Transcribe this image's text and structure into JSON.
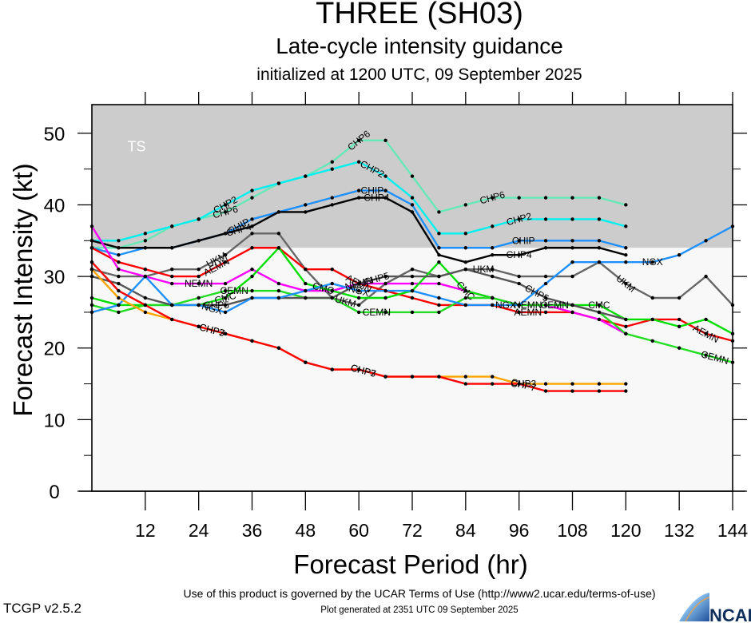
{
  "header": {
    "title": "THREE (SH03)",
    "subtitle": "Late-cycle intensity guidance",
    "init_line": "initialized at 1200 UTC, 09 September 2025"
  },
  "footer": {
    "terms": "Use of this product is governed by the UCAR Terms of Use (http://www2.ucar.edu/terms-of-use)",
    "generated": "Plot generated at 2351 UTC   09 September 2025",
    "version": "TCGP v2.5.2",
    "logo_text": "NCAR"
  },
  "chart_data": {
    "type": "line",
    "title": "THREE (SH03)",
    "subtitle": "Late-cycle intensity guidance",
    "xlabel": "Forecast Period (hr)",
    "ylabel": "Forecast Intensity (kt)",
    "xlim": [
      0,
      144
    ],
    "ylim": [
      0,
      54
    ],
    "xticks": [
      12,
      24,
      36,
      48,
      60,
      72,
      84,
      96,
      108,
      120,
      132,
      144
    ],
    "yticks": [
      0,
      10,
      20,
      30,
      40,
      50
    ],
    "grid": false,
    "legend": "none (inline series labels)",
    "bands": [
      {
        "label": "TS",
        "from": 34,
        "to": 54,
        "color": "#cccccc"
      },
      {
        "label": "",
        "from": 0,
        "to": 34,
        "color": "#f8f8f8"
      }
    ],
    "series": [
      {
        "name": "CHP6",
        "color": "#66e8b8",
        "x": [
          0,
          6,
          12,
          18,
          24,
          30,
          36,
          42,
          48,
          54,
          60,
          66,
          72,
          78,
          84,
          90,
          96,
          102,
          108,
          114,
          120
        ],
        "y": [
          34,
          34,
          35,
          37,
          38,
          39,
          41,
          43,
          44,
          46,
          49,
          49,
          44,
          39,
          40,
          41,
          41,
          41,
          41,
          41,
          40
        ],
        "label_at": [
          30,
          60,
          90
        ]
      },
      {
        "name": "CHP2",
        "color": "#00f0f0",
        "x": [
          0,
          6,
          12,
          18,
          24,
          30,
          36,
          42,
          48,
          54,
          60,
          66,
          72,
          78,
          84,
          90,
          96,
          102,
          108,
          114,
          120
        ],
        "y": [
          35,
          35,
          36,
          37,
          38,
          40,
          42,
          43,
          44,
          45,
          46,
          44,
          41,
          36,
          36,
          37,
          38,
          38,
          38,
          38,
          37
        ],
        "label_at": [
          30,
          63,
          96
        ]
      },
      {
        "name": "CHIP",
        "color": "#1e90ff",
        "x": [
          0,
          6,
          12,
          18,
          24,
          30,
          36,
          42,
          48,
          54,
          60,
          66,
          72,
          78,
          84,
          90,
          96,
          102,
          108,
          114,
          120
        ],
        "y": [
          34,
          33,
          34,
          34,
          35,
          36,
          38,
          39,
          40,
          41,
          42,
          42,
          40,
          34,
          34,
          34,
          35,
          35,
          35,
          35,
          34
        ],
        "label_at": [
          33,
          63,
          97
        ]
      },
      {
        "name": "CHP4",
        "color": "#000000",
        "x": [
          0,
          6,
          12,
          18,
          24,
          30,
          36,
          42,
          48,
          54,
          60,
          66,
          72,
          78,
          84,
          90,
          96,
          102,
          108,
          114,
          120
        ],
        "y": [
          35,
          34,
          34,
          34,
          35,
          36,
          37,
          39,
          39,
          40,
          41,
          41,
          39,
          33,
          32,
          33,
          33,
          34,
          34,
          34,
          33
        ],
        "label_at": [
          33,
          64,
          96
        ]
      },
      {
        "name": "UKM",
        "color": "#666666",
        "x": [
          0,
          6,
          12,
          18,
          24,
          30,
          36,
          42,
          48,
          54,
          60,
          66,
          72,
          78,
          84,
          90,
          96,
          102,
          108,
          114,
          120,
          126,
          132,
          138,
          144
        ],
        "y": [
          31,
          30,
          30,
          31,
          31,
          33,
          36,
          36,
          31,
          27,
          26,
          29,
          31,
          30,
          31,
          31,
          30,
          30,
          30,
          32,
          29,
          27,
          27,
          30,
          26
        ],
        "label_at": [
          28,
          57,
          88,
          120
        ]
      },
      {
        "name": "AEMN",
        "color": "#ff0000",
        "x": [
          0,
          6,
          12,
          18,
          24,
          30,
          36,
          42,
          48,
          54,
          60,
          66,
          72,
          78,
          84,
          90,
          96,
          102,
          108,
          114,
          120,
          126,
          132,
          138,
          144
        ],
        "y": [
          34,
          32,
          31,
          30,
          30,
          32,
          34,
          34,
          31,
          31,
          29,
          28,
          27,
          26,
          26,
          26,
          25,
          25,
          25,
          24,
          23,
          24,
          24,
          22,
          21
        ],
        "label_at": [
          28,
          60,
          98,
          138
        ]
      },
      {
        "name": "NEMN",
        "color": "#ff00ff",
        "x": [
          0,
          6,
          12,
          18,
          24,
          30,
          36,
          42,
          48,
          54,
          60,
          66,
          72,
          78,
          84,
          90,
          96,
          102,
          108,
          114,
          120
        ],
        "y": [
          37,
          31,
          30,
          29,
          29,
          29,
          31,
          29,
          28,
          28,
          29,
          29,
          29,
          29,
          28,
          27,
          26,
          26,
          25,
          24,
          22
        ],
        "label_at": [
          24,
          60,
          98
        ]
      },
      {
        "name": "CMC",
        "color": "#00e000",
        "x": [
          0,
          6,
          12,
          18,
          24,
          30,
          36,
          42,
          48,
          54,
          60,
          66,
          72,
          78,
          84,
          90,
          96,
          102,
          108,
          114,
          120,
          126,
          132,
          138,
          144
        ],
        "y": [
          27,
          26,
          26,
          26,
          26,
          27,
          30,
          34,
          29,
          28,
          27,
          27,
          28,
          32,
          28,
          27,
          26,
          26,
          26,
          26,
          24,
          24,
          23,
          24,
          22
        ],
        "label_at": [
          30,
          52,
          84,
          114
        ]
      },
      {
        "name": "CEMN",
        "color": "#22dd22",
        "x": [
          0,
          6,
          12,
          18,
          24,
          30,
          36,
          42,
          48,
          54,
          60,
          66,
          72,
          78,
          84,
          90,
          96,
          102,
          108,
          114,
          120,
          126,
          132,
          138,
          144
        ],
        "y": [
          26,
          25,
          26,
          26,
          27,
          28,
          28,
          28,
          27,
          27,
          25,
          25,
          25,
          25,
          27,
          27,
          26,
          26,
          26,
          25,
          22,
          21,
          20,
          19,
          18
        ],
        "label_at": [
          32,
          64,
          104,
          140
        ]
      },
      {
        "name": "CHP5",
        "color": "#555555",
        "x": [
          0,
          6,
          12,
          18,
          24,
          30,
          36,
          42,
          48,
          54,
          60,
          66,
          72,
          78,
          84,
          90,
          96,
          102,
          108,
          114,
          120
        ],
        "y": [
          30,
          29,
          27,
          26,
          26,
          26,
          27,
          27,
          27,
          27,
          29,
          30,
          30,
          30,
          31,
          30,
          29,
          27,
          26,
          25,
          24
        ],
        "label_at": [
          28,
          64,
          100
        ]
      },
      {
        "name": "NGX",
        "color": "#1e90ff",
        "x": [
          0,
          6,
          12,
          18,
          24,
          30,
          36,
          42,
          48,
          54,
          60,
          66,
          72,
          78,
          84,
          90,
          96,
          102,
          108,
          114,
          120,
          126,
          132,
          138,
          144
        ],
        "y": [
          25,
          26,
          30,
          26,
          26,
          25,
          27,
          27,
          28,
          29,
          28,
          28,
          28,
          27,
          26,
          26,
          26,
          29,
          32,
          32,
          32,
          32,
          33,
          35,
          37
        ],
        "label_at": [
          27,
          60,
          93,
          126
        ]
      },
      {
        "name": "CHP3",
        "color": "#ffa500",
        "x": [
          0,
          6,
          12,
          18,
          24,
          30,
          36,
          42,
          48,
          54,
          60,
          66,
          72,
          78,
          84,
          90,
          96,
          102,
          108,
          114,
          120
        ],
        "y": [
          31,
          27,
          25,
          24,
          23,
          22,
          21,
          20,
          18,
          17,
          17,
          16,
          16,
          16,
          16,
          16,
          15,
          15,
          15,
          15,
          15
        ],
        "label_at": [
          27,
          61,
          97
        ]
      },
      {
        "name": "CHP7",
        "color": "#ff0000",
        "x": [
          0,
          6,
          12,
          18,
          24,
          30,
          36,
          42,
          48,
          54,
          60,
          66,
          72,
          78,
          84,
          90,
          96,
          102,
          108,
          114,
          120
        ],
        "y": [
          32,
          28,
          26,
          24,
          23,
          22,
          21,
          20,
          18,
          17,
          17,
          16,
          16,
          16,
          15,
          15,
          15,
          14,
          14,
          14,
          14
        ],
        "label_at": [
          27,
          61,
          97
        ]
      }
    ]
  }
}
